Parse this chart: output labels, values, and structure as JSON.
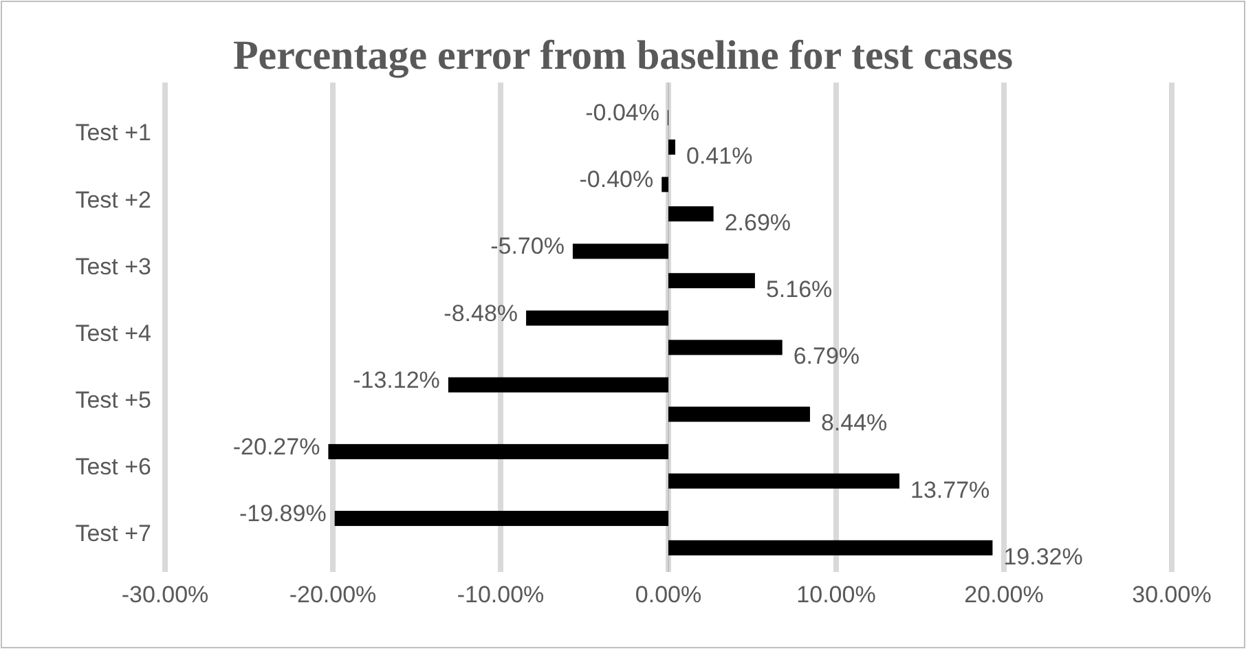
{
  "chart_data": {
    "type": "bar",
    "orientation": "horizontal",
    "title": "Percentage error from baseline for test cases",
    "categories": [
      "Test +1",
      "Test +2",
      "Test +3",
      "Test +4",
      "Test +5",
      "Test +6",
      "Test +7"
    ],
    "series": [
      {
        "color": "#000000",
        "values": [
          -0.04,
          -0.4,
          -5.7,
          -8.48,
          -13.12,
          -20.27,
          -19.89
        ],
        "value_labels": [
          "-0.04%",
          "-0.40%",
          "-5.70%",
          "-8.48%",
          "-13.12%",
          "-20.27%",
          "-19.89%"
        ]
      },
      {
        "color": "#000000",
        "values": [
          0.41,
          2.69,
          5.16,
          6.79,
          8.44,
          13.77,
          19.32
        ],
        "value_labels": [
          "0.41%",
          "2.69%",
          "5.16%",
          "6.79%",
          "8.44%",
          "13.77%",
          "19.32%"
        ]
      }
    ],
    "xlim": [
      -30,
      30
    ],
    "xticks": [
      {
        "value": -30,
        "label": "-30.00%"
      },
      {
        "value": -20,
        "label": "-20.00%"
      },
      {
        "value": -10,
        "label": "-10.00%"
      },
      {
        "value": 0,
        "label": "0.00%"
      },
      {
        "value": 10,
        "label": "10.00%"
      },
      {
        "value": 20,
        "label": "20.00%"
      },
      {
        "value": 30,
        "label": "30.00%"
      }
    ],
    "grid": "x"
  }
}
